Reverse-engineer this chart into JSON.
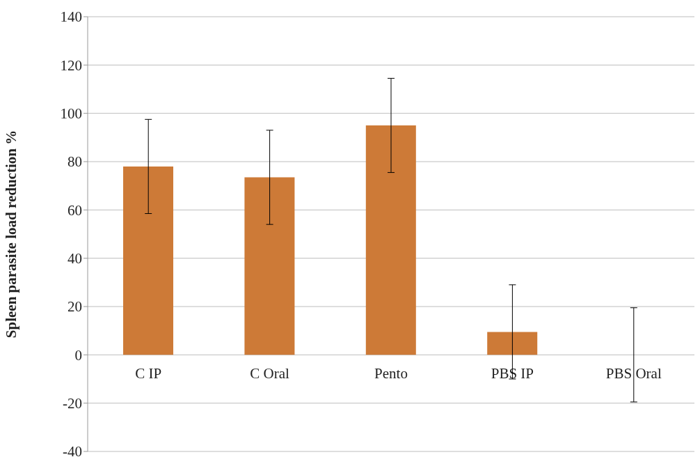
{
  "chart_data": {
    "type": "bar",
    "ylabel": "Spleen parasite load  reduction  %",
    "categories": [
      "C IP",
      "C Oral",
      "Pento",
      "PBS IP",
      "PBS Oral"
    ],
    "values": [
      78,
      73.5,
      95,
      9.5,
      0
    ],
    "errors": [
      19.5,
      19.5,
      19.5,
      19.5,
      19.5
    ],
    "color": "#cd7a37",
    "ylim": [
      -40,
      140
    ],
    "yticks": [
      -40,
      -20,
      0,
      20,
      40,
      60,
      80,
      100,
      120,
      140
    ],
    "grid": "y",
    "legend": false
  }
}
